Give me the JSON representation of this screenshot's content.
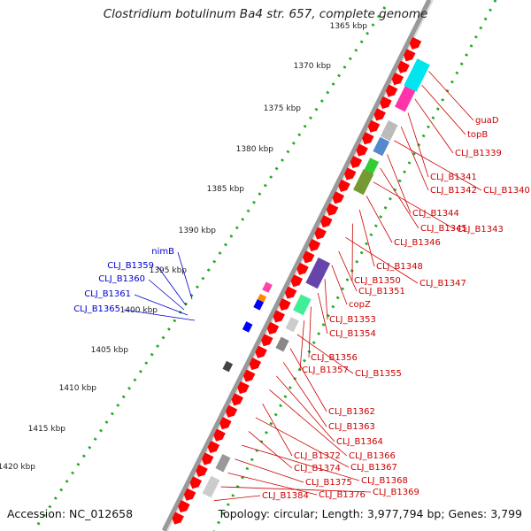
{
  "title": "Clostridium botulinum Ba4 str. 657, complete genome",
  "accession": "Accession: NC_012658",
  "summary": "Topology: circular; Length: 3,977,794 bp; Genes: 3,799",
  "ticks": [
    "1365 kbp",
    "1370 kbp",
    "1375 kbp",
    "1380 kbp",
    "1385 kbp",
    "1390 kbp",
    "1395 kbp",
    "1400 kbp",
    "1405 kbp",
    "1410 kbp",
    "1415 kbp",
    "1420 kbp"
  ],
  "left_labels": [
    "nimB",
    "CLJ_B1359",
    "CLJ_B1360",
    "CLJ_B1361",
    "CLJ_B1365"
  ],
  "right_labels": [
    "guaD",
    "topB",
    "CLJ_B1339",
    "CLJ_B1341",
    "CLJ_B1342",
    "CLJ_B1340",
    "CLJ_B1344",
    "CLJ_B1345",
    "CLJ_B1343",
    "CLJ_B1346",
    "CLJ_B1348",
    "CLJ_B1350",
    "CLJ_B1347",
    "CLJ_B1351",
    "copZ",
    "CLJ_B1353",
    "CLJ_B1354",
    "CLJ_B1356",
    "CLJ_B1357",
    "CLJ_B1355",
    "CLJ_B1362",
    "CLJ_B1363",
    "CLJ_B1364",
    "CLJ_B1366",
    "CLJ_B1372",
    "CLJ_B1367",
    "CLJ_B1374",
    "CLJ_B1368",
    "CLJ_B1375",
    "CLJ_B1376",
    "CLJ_B1369",
    "CLJ_B1384"
  ],
  "colors": {
    "forward_cds": "#ff0000",
    "left_label": "#0000cc",
    "right_label": "#cc0000",
    "backbone": "#888888",
    "gc_dots": "#22aa22"
  }
}
